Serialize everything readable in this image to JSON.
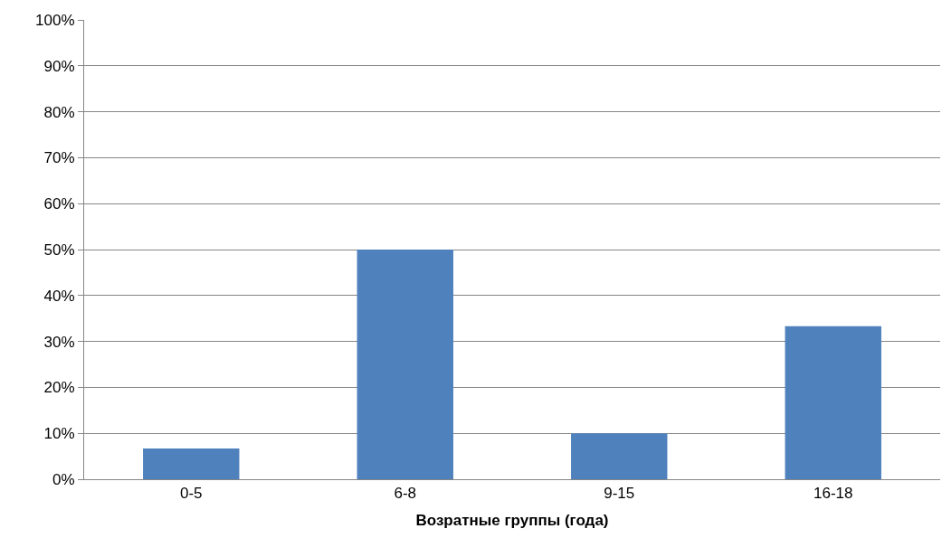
{
  "chart_data": {
    "type": "bar",
    "xlabel": "Возратные группы (года)",
    "categories": [
      "0-5",
      "6-8",
      "9-15",
      "16-18"
    ],
    "values": [
      6.7,
      50,
      10,
      33.3
    ],
    "color": "#4f81bd",
    "ylim": [
      0,
      100
    ],
    "yticks": [
      {
        "value": 0,
        "label": "0%"
      },
      {
        "value": 10,
        "label": "10%"
      },
      {
        "value": 20,
        "label": "20%"
      },
      {
        "value": 30,
        "label": "30%"
      },
      {
        "value": 40,
        "label": "40%"
      },
      {
        "value": 50,
        "label": "50%"
      },
      {
        "value": 60,
        "label": "60%"
      },
      {
        "value": 70,
        "label": "70%"
      },
      {
        "value": 80,
        "label": "80%"
      },
      {
        "value": 90,
        "label": "90%"
      },
      {
        "value": 100,
        "label": "100%"
      }
    ],
    "grid": "y"
  }
}
